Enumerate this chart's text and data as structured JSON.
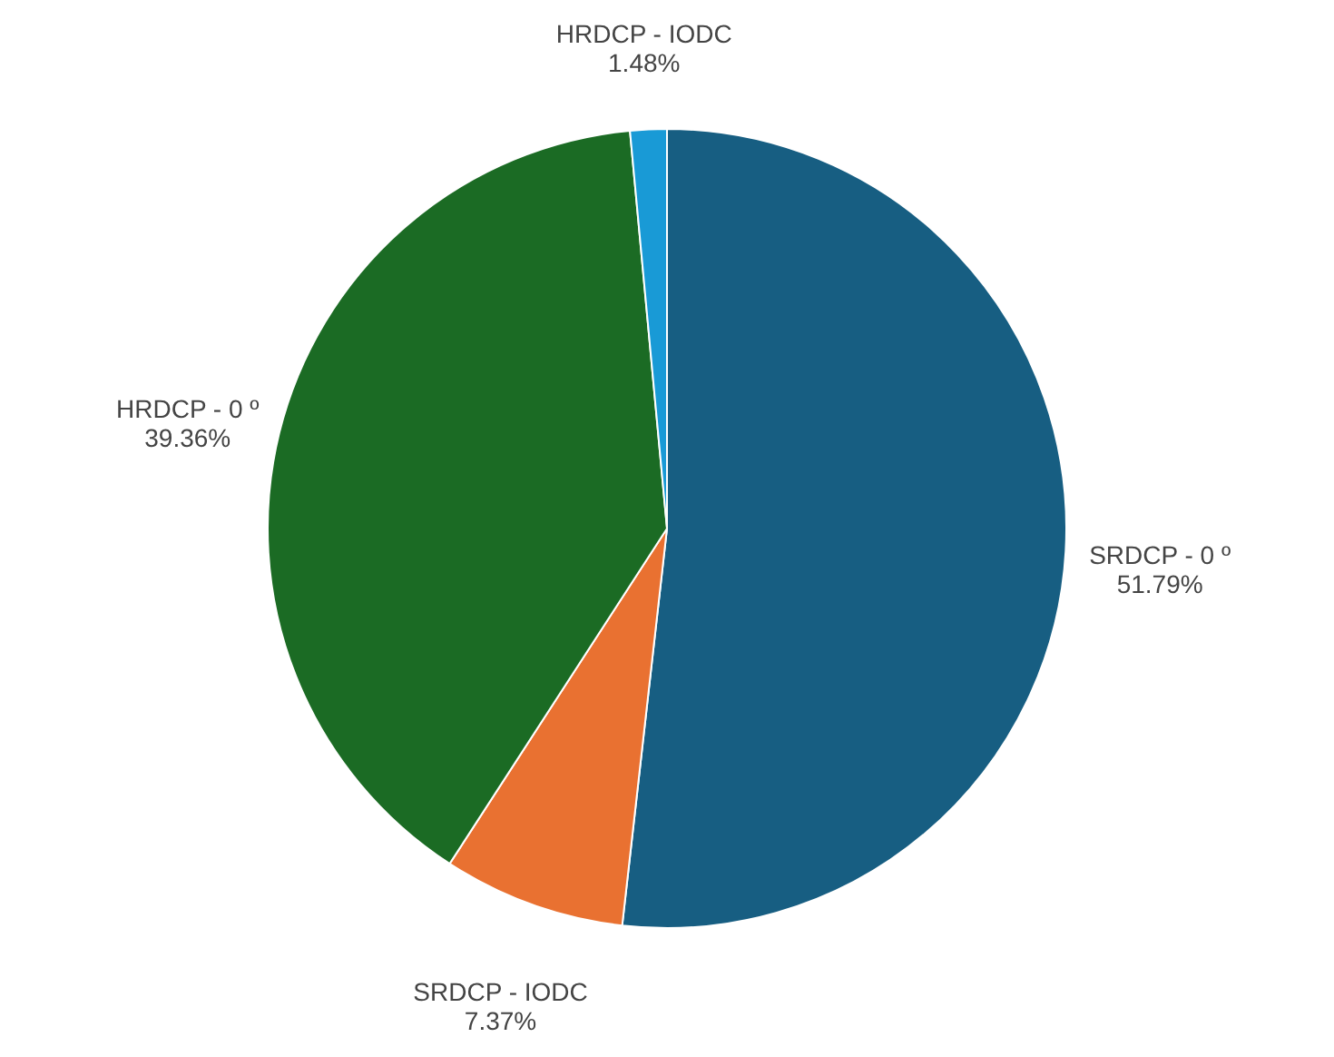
{
  "chart_data": {
    "type": "pie",
    "categories": [
      "SRDCP - 0 º",
      "SRDCP - IODC",
      "HRDCP - 0 º",
      "HRDCP - IODC"
    ],
    "values": [
      51.79,
      7.37,
      39.36,
      1.48
    ],
    "value_labels": [
      "51.79%",
      "7.37%",
      "39.36%",
      "1.48%"
    ],
    "colors": [
      "#175e82",
      "#e97131",
      "#1b6b24",
      "#199ad6"
    ]
  }
}
